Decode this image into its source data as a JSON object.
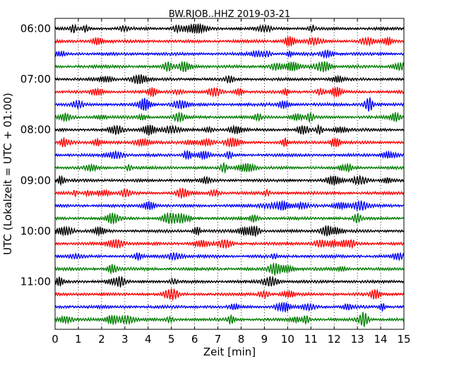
{
  "chart_data": {
    "type": "line",
    "title": "BW.RJOB..HHZ 2019-03-21",
    "xlabel": "Zeit  [min]",
    "ylabel": "UTC (Lokalzeit = UTC + 01:00)",
    "xlim": [
      0,
      15
    ],
    "x_ticks": [
      "0",
      "1",
      "2",
      "3",
      "4",
      "5",
      "6",
      "7",
      "8",
      "9",
      "10",
      "11",
      "12",
      "13",
      "14",
      "15"
    ],
    "y_tick_labels": [
      "06:00",
      "07:00",
      "08:00",
      "09:00",
      "10:00",
      "11:00"
    ],
    "grid": "vertical dotted",
    "trace_colors": [
      "#000000",
      "#ff0000",
      "#0000ff",
      "#007f00"
    ],
    "series": [
      {
        "start": "06:00"
      },
      {
        "start": "06:15"
      },
      {
        "start": "06:30"
      },
      {
        "start": "06:45"
      },
      {
        "start": "07:00"
      },
      {
        "start": "07:15"
      },
      {
        "start": "07:30"
      },
      {
        "start": "07:45"
      },
      {
        "start": "08:00"
      },
      {
        "start": "08:15"
      },
      {
        "start": "08:30"
      },
      {
        "start": "08:45"
      },
      {
        "start": "09:00"
      },
      {
        "start": "09:15"
      },
      {
        "start": "09:30"
      },
      {
        "start": "09:45"
      },
      {
        "start": "10:00"
      },
      {
        "start": "10:15"
      },
      {
        "start": "10:30"
      },
      {
        "start": "10:45"
      },
      {
        "start": "11:00"
      },
      {
        "start": "11:15"
      },
      {
        "start": "11:30"
      },
      {
        "start": "11:45"
      }
    ]
  }
}
